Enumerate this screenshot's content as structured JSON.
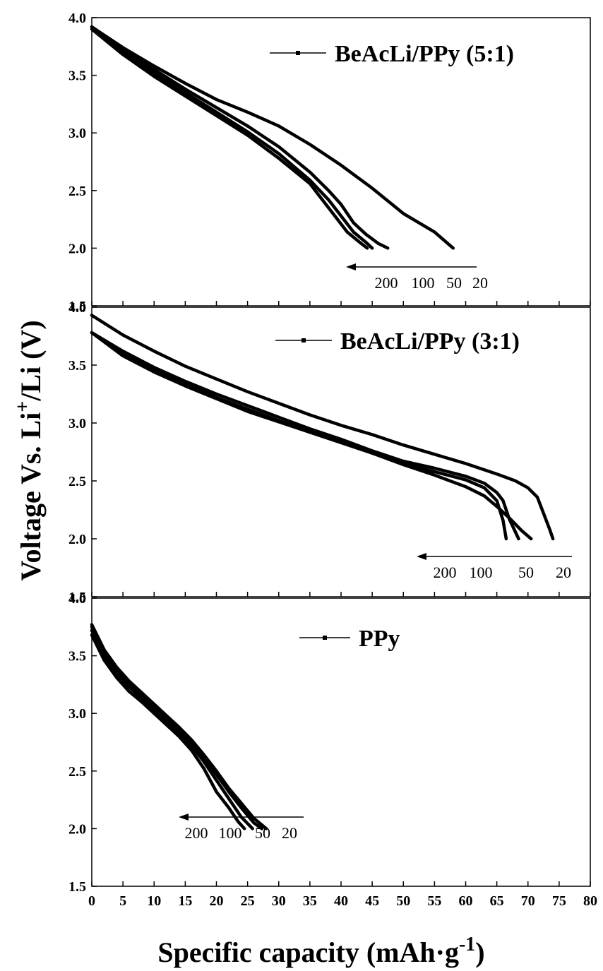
{
  "xlabel_main": "Specific capacity (mAh·g",
  "xlabel_sup": "-1",
  "xlabel_end": ")",
  "ylabel_main": "Voltage Vs. Li",
  "ylabel_sup": "+",
  "ylabel_end": "/Li (V)",
  "chart_data": [
    {
      "type": "line",
      "legend": "BeAcLi/PPy (5:1)",
      "legend_position": "top-right",
      "xlim": [
        0,
        80
      ],
      "ylim": [
        1.5,
        4.0
      ],
      "rate_labels": [
        "200",
        "100",
        "50",
        "20"
      ],
      "series": [
        {
          "rate": "20",
          "x": [
            0,
            5,
            10,
            15,
            20,
            25,
            30,
            35,
            40,
            45,
            50,
            55,
            58
          ],
          "y": [
            3.92,
            3.74,
            3.58,
            3.43,
            3.29,
            3.18,
            3.06,
            2.9,
            2.72,
            2.52,
            2.3,
            2.14,
            2.0
          ]
        },
        {
          "rate": "50",
          "x": [
            0,
            5,
            10,
            15,
            20,
            25,
            30,
            35,
            38,
            40,
            42,
            44,
            46,
            47.5
          ],
          "y": [
            3.92,
            3.72,
            3.55,
            3.38,
            3.22,
            3.06,
            2.88,
            2.66,
            2.5,
            2.38,
            2.22,
            2.12,
            2.04,
            2.0
          ]
        },
        {
          "rate": "100",
          "x": [
            0,
            5,
            10,
            15,
            20,
            25,
            30,
            35,
            38,
            40,
            42,
            44,
            45
          ],
          "y": [
            3.92,
            3.7,
            3.52,
            3.35,
            3.18,
            3.01,
            2.82,
            2.59,
            2.42,
            2.28,
            2.14,
            2.05,
            2.0
          ]
        },
        {
          "rate": "200",
          "x": [
            0,
            5,
            10,
            15,
            20,
            25,
            30,
            35,
            37,
            39,
            41,
            43,
            44.2
          ],
          "y": [
            3.9,
            3.68,
            3.49,
            3.32,
            3.15,
            2.98,
            2.78,
            2.56,
            2.42,
            2.28,
            2.14,
            2.05,
            2.0
          ]
        }
      ]
    },
    {
      "type": "line",
      "legend": "BeAcLi/PPy (3:1)",
      "legend_position": "top-right",
      "xlim": [
        0,
        80
      ],
      "ylim": [
        1.5,
        4.0
      ],
      "rate_labels": [
        "200",
        "100",
        "50",
        "20"
      ],
      "series": [
        {
          "rate": "20",
          "x": [
            0,
            5,
            10,
            15,
            20,
            25,
            30,
            35,
            40,
            45,
            50,
            55,
            60,
            65,
            68,
            70,
            71.5,
            72.5,
            73.5,
            74
          ],
          "y": [
            3.93,
            3.76,
            3.62,
            3.49,
            3.38,
            3.27,
            3.17,
            3.07,
            2.98,
            2.9,
            2.81,
            2.73,
            2.65,
            2.56,
            2.5,
            2.44,
            2.36,
            2.22,
            2.08,
            2.0
          ]
        },
        {
          "rate": "50",
          "x": [
            0,
            5,
            10,
            15,
            20,
            25,
            30,
            35,
            40,
            45,
            50,
            55,
            60,
            63,
            65,
            66,
            67,
            68.5
          ],
          "y": [
            3.78,
            3.62,
            3.48,
            3.36,
            3.25,
            3.15,
            3.05,
            2.95,
            2.86,
            2.76,
            2.67,
            2.61,
            2.54,
            2.48,
            2.4,
            2.33,
            2.17,
            2.0
          ]
        },
        {
          "rate": "100",
          "x": [
            0,
            5,
            10,
            15,
            20,
            25,
            30,
            35,
            40,
            45,
            50,
            55,
            60,
            63,
            65,
            66,
            66.5
          ],
          "y": [
            3.78,
            3.6,
            3.46,
            3.34,
            3.22,
            3.12,
            3.02,
            2.93,
            2.84,
            2.74,
            2.65,
            2.58,
            2.51,
            2.44,
            2.33,
            2.16,
            2.0
          ]
        },
        {
          "rate": "200",
          "x": [
            0,
            5,
            10,
            15,
            20,
            25,
            30,
            35,
            40,
            45,
            50,
            55,
            60,
            63,
            65,
            67,
            69,
            70.5
          ],
          "y": [
            3.78,
            3.58,
            3.44,
            3.32,
            3.21,
            3.1,
            3.01,
            2.92,
            2.83,
            2.74,
            2.64,
            2.55,
            2.45,
            2.37,
            2.28,
            2.18,
            2.07,
            2.0
          ]
        }
      ]
    },
    {
      "type": "line",
      "legend": "PPy",
      "legend_position": "top-center",
      "xlim": [
        0,
        80
      ],
      "ylim": [
        1.5,
        4.0
      ],
      "rate_labels": [
        "200",
        "100",
        "50",
        "20"
      ],
      "series": [
        {
          "rate": "20",
          "x": [
            0,
            2,
            4,
            6,
            8,
            10,
            12,
            14,
            16,
            18,
            20,
            22,
            24,
            26,
            28
          ],
          "y": [
            3.77,
            3.55,
            3.4,
            3.28,
            3.18,
            3.08,
            2.98,
            2.88,
            2.77,
            2.64,
            2.5,
            2.35,
            2.22,
            2.09,
            2.0
          ]
        },
        {
          "rate": "50",
          "x": [
            0,
            2,
            4,
            6,
            8,
            10,
            12,
            14,
            16,
            18,
            20,
            22,
            24,
            26,
            27.3
          ],
          "y": [
            3.75,
            3.53,
            3.38,
            3.26,
            3.16,
            3.06,
            2.96,
            2.86,
            2.75,
            2.62,
            2.47,
            2.32,
            2.18,
            2.05,
            2.0
          ]
        },
        {
          "rate": "100",
          "x": [
            0,
            2,
            4,
            6,
            8,
            10,
            12,
            14,
            16,
            18,
            20,
            22,
            24,
            25.8
          ],
          "y": [
            3.72,
            3.5,
            3.35,
            3.23,
            3.13,
            3.03,
            2.93,
            2.83,
            2.72,
            2.58,
            2.42,
            2.26,
            2.1,
            2.0
          ]
        },
        {
          "rate": "200",
          "x": [
            0,
            2,
            4,
            6,
            8,
            10,
            12,
            14,
            16,
            18,
            20,
            22,
            23.5,
            24.5
          ],
          "y": [
            3.68,
            3.46,
            3.31,
            3.19,
            3.1,
            3.0,
            2.9,
            2.8,
            2.68,
            2.52,
            2.32,
            2.18,
            2.06,
            2.0
          ]
        }
      ]
    }
  ]
}
